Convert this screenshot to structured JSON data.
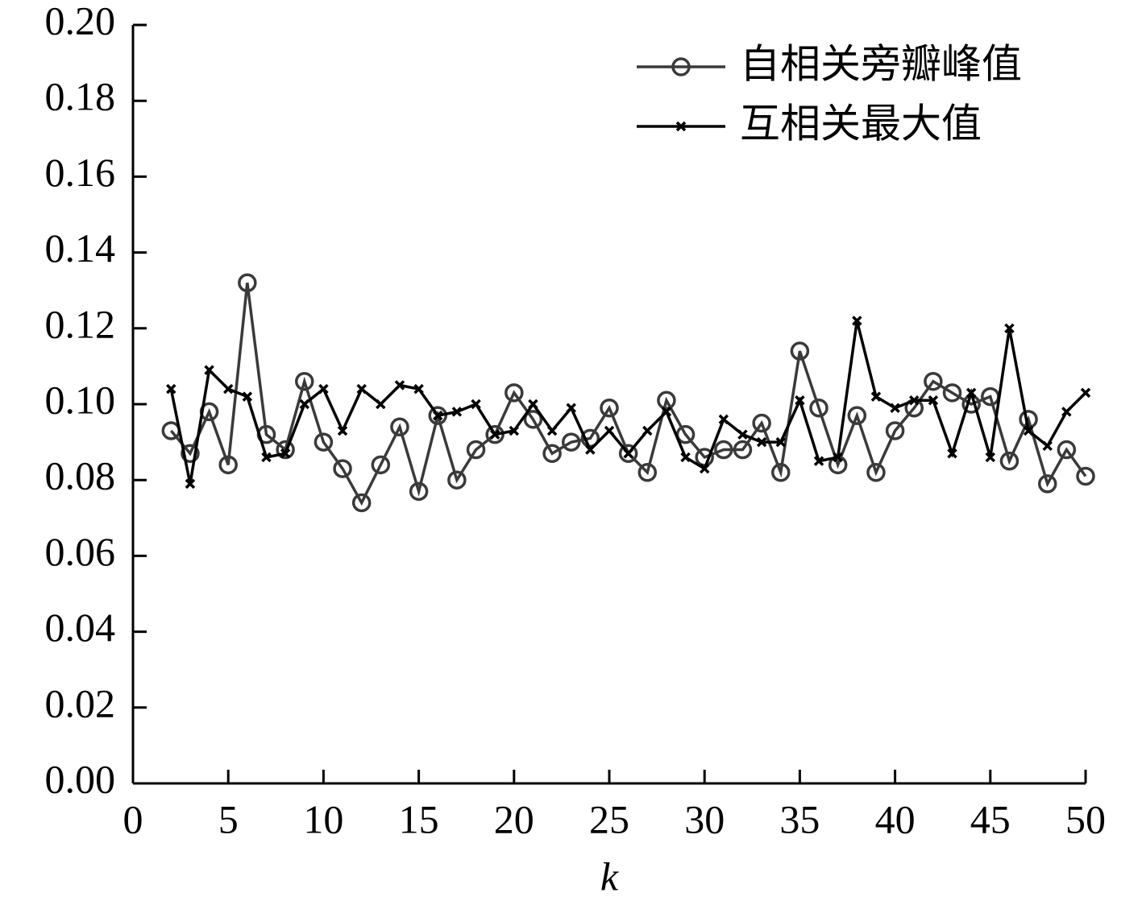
{
  "chart_data": {
    "type": "line",
    "xlabel": "k",
    "x": [
      2,
      3,
      4,
      5,
      6,
      7,
      8,
      9,
      10,
      11,
      12,
      13,
      14,
      15,
      16,
      17,
      18,
      19,
      20,
      21,
      22,
      23,
      24,
      25,
      26,
      27,
      28,
      29,
      30,
      31,
      32,
      33,
      34,
      35,
      36,
      37,
      38,
      39,
      40,
      41,
      42,
      43,
      44,
      45,
      46,
      47,
      48,
      49,
      50
    ],
    "series": [
      {
        "name": "自相关旁瓣峰值",
        "color": "#3a3a3a",
        "marker": "circle",
        "values": [
          0.093,
          0.087,
          0.098,
          0.084,
          0.132,
          0.092,
          0.088,
          0.106,
          0.09,
          0.083,
          0.074,
          0.084,
          0.094,
          0.077,
          0.097,
          0.08,
          0.088,
          0.092,
          0.103,
          0.096,
          0.087,
          0.09,
          0.091,
          0.099,
          0.087,
          0.082,
          0.101,
          0.092,
          0.086,
          0.088,
          0.088,
          0.095,
          0.082,
          0.114,
          0.099,
          0.084,
          0.097,
          0.082,
          0.093,
          0.099,
          0.106,
          0.103,
          0.1,
          0.102,
          0.085,
          0.096,
          0.079,
          0.088,
          0.081
        ]
      },
      {
        "name": "互相关最大值",
        "color": "#000000",
        "marker": "x",
        "values": [
          0.104,
          0.079,
          0.109,
          0.104,
          0.102,
          0.086,
          0.087,
          0.1,
          0.104,
          0.093,
          0.104,
          0.1,
          0.105,
          0.104,
          0.097,
          0.098,
          0.1,
          0.092,
          0.093,
          0.1,
          0.093,
          0.099,
          0.088,
          0.093,
          0.087,
          0.093,
          0.098,
          0.086,
          0.083,
          0.096,
          0.092,
          0.09,
          0.09,
          0.101,
          0.085,
          0.086,
          0.122,
          0.102,
          0.099,
          0.101,
          0.101,
          0.087,
          0.103,
          0.086,
          0.12,
          0.093,
          0.089,
          0.098,
          0.103
        ]
      }
    ],
    "xlim": [
      0,
      50
    ],
    "xticks": [
      0,
      5,
      10,
      15,
      20,
      25,
      30,
      35,
      40,
      45,
      50
    ],
    "ylim": [
      0,
      0.2
    ],
    "yticks": [
      {
        "value": 0,
        "label": "0.00"
      },
      {
        "value": 0.02,
        "label": "0.02"
      },
      {
        "value": 0.04,
        "label": "0.04"
      },
      {
        "value": 0.06,
        "label": "0.06"
      },
      {
        "value": 0.08,
        "label": "0.08"
      },
      {
        "value": 0.1,
        "label": "0.10"
      },
      {
        "value": 0.12,
        "label": "0.12"
      },
      {
        "value": 0.14,
        "label": "0.14"
      },
      {
        "value": 0.16,
        "label": "0.16"
      },
      {
        "value": 0.18,
        "label": "0.18"
      },
      {
        "value": 0.2,
        "label": "0.20"
      }
    ],
    "grid": false,
    "legend": "upper right"
  }
}
